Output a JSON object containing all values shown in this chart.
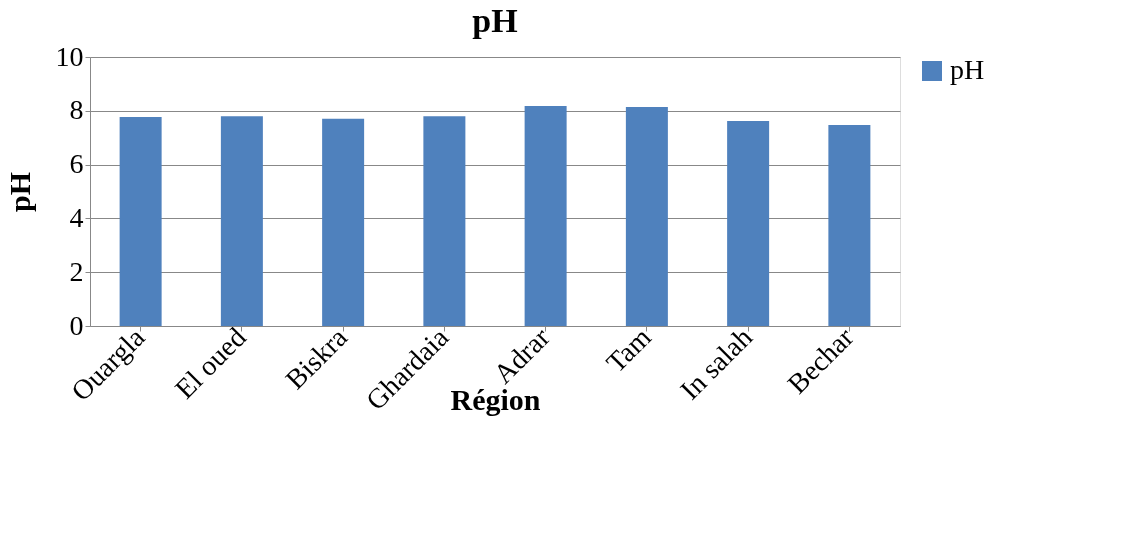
{
  "chart_data": {
    "type": "bar",
    "title": "pH",
    "xlabel": "Région",
    "ylabel": "pH",
    "categories": [
      "Ouargla",
      "El oued",
      "Biskra",
      "Ghardaia",
      "Adrar",
      "Tam",
      "In salah",
      "Bechar"
    ],
    "series": [
      {
        "name": "pH",
        "color": "#4f81bd",
        "values": [
          7.77,
          7.8,
          7.7,
          7.8,
          8.18,
          8.14,
          7.62,
          7.47
        ]
      }
    ],
    "ylim": [
      0,
      10
    ],
    "yticks": [
      0,
      2,
      4,
      6,
      8,
      10
    ],
    "grid": "y",
    "legend": "right"
  }
}
